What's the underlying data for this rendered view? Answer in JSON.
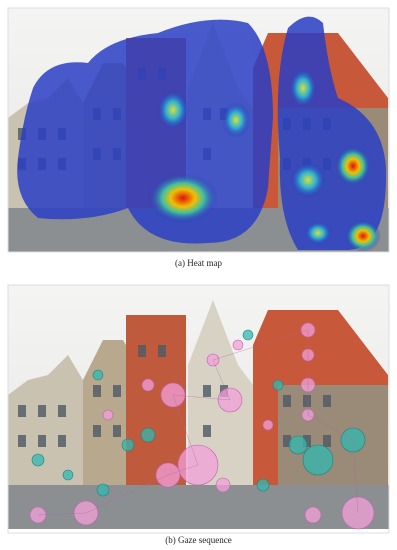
{
  "figure": {
    "panels": [
      {
        "caption": "(a) Heat map"
      },
      {
        "caption": "(b) Gaze sequence"
      }
    ]
  }
}
